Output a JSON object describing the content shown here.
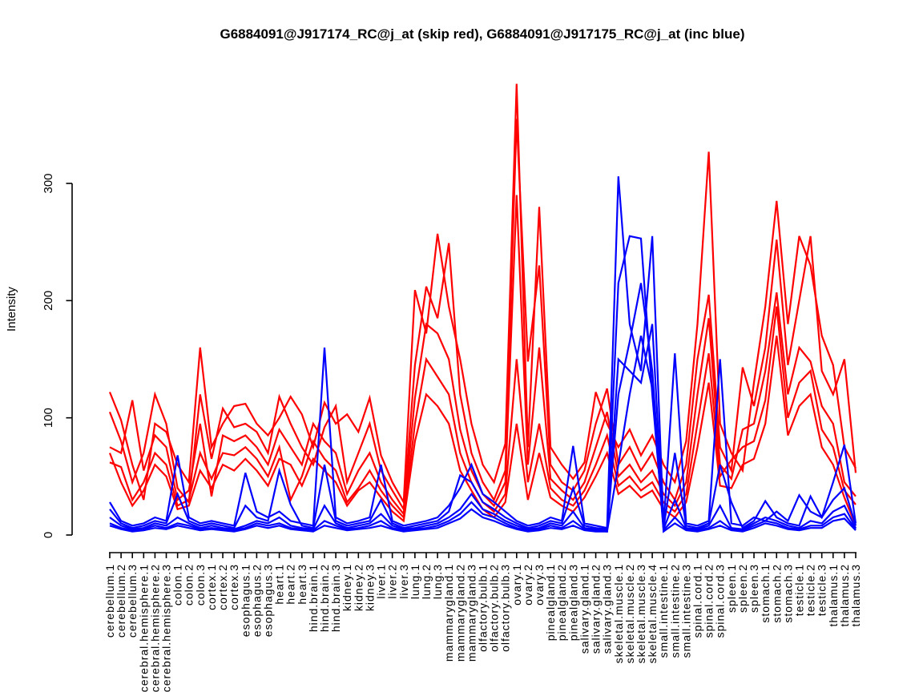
{
  "title": "G6884091@J917174_RC@j_at (skip red), G6884091@J917175_RC@j_at (inc blue)",
  "chart_data": {
    "type": "line",
    "title": "G6884091@J917174_RC@j_at (skip red), G6884091@J917175_RC@j_at (inc blue)",
    "xlabel": "",
    "ylabel": "Intensity",
    "ylim": [
      0,
      390
    ],
    "yticks": [
      0,
      100,
      200,
      300
    ],
    "grid": false,
    "legend_position": "none",
    "categories": [
      "cerebellum.1",
      "cerebellum.2",
      "cerebellum.3",
      "cerebral.hemisphere.1",
      "cerebral.hemisphere.2",
      "cerebral.hemisphere.3",
      "colon.1",
      "colon.2",
      "colon.3",
      "cortex.1",
      "cortex.2",
      "cortex.3",
      "esophagus.1",
      "esophagus.2",
      "esophagus.3",
      "heart.1",
      "heart.2",
      "heart.3",
      "hind.brain.1",
      "hind.brain.2",
      "hind.brain.3",
      "kidney.1",
      "kidney.2",
      "kidney.3",
      "liver.1",
      "liver.2",
      "liver.3",
      "lung.1",
      "lung.2",
      "lung.3",
      "mammarygland.1",
      "mammarygland.2",
      "mammarygland.3",
      "olfactory.bulb.1",
      "olfactory.bulb.2",
      "olfactory.bulb.3",
      "ovary.1",
      "ovary.2",
      "ovary.3",
      "pinealgland.1",
      "pinealgland.2",
      "pinealgland.3",
      "salivary.gland.1",
      "salivary.gland.2",
      "salivary.gland.3",
      "skeletal.muscle.1",
      "skeletal.muscle.2",
      "skeletal.muscle.3",
      "skeletal.muscle.4",
      "small.intestine.1",
      "small.intestine.2",
      "small.intestine.3",
      "spinal.cord.1",
      "spinal.cord.2",
      "spinal.cord.3",
      "spleen.1",
      "spleen.2",
      "spleen.3",
      "stomach.1",
      "stomach.2",
      "stomach.3",
      "testicle.1",
      "testicle.2",
      "testicle.3",
      "thalamus.1",
      "thalamus.2",
      "thalamus.3"
    ],
    "series": [
      {
        "name": "G6884091@J917174_RC@j_at",
        "role": "skip",
        "color": "#FF0000",
        "lines": [
          [
            122,
            98,
            60,
            30,
            95,
            88,
            60,
            45,
            160,
            75,
            95,
            110,
            112,
            95,
            85,
            100,
            118,
            103,
            75,
            113,
            95,
            103,
            88,
            117,
            68,
            45,
            28,
            209,
            172,
            257,
            195,
            150,
            95,
            60,
            45,
            78,
            385,
            75,
            280,
            75,
            60,
            48,
            62,
            122,
            95,
            75,
            90,
            68,
            85,
            60,
            45,
            80,
            180,
            327,
            95,
            70,
            55,
            130,
            195,
            285,
            180,
            255,
            230,
            170,
            145,
            75,
            57
          ],
          [
            105,
            80,
            45,
            70,
            120,
            95,
            40,
            28,
            120,
            65,
            108,
            92,
            95,
            88,
            70,
            118,
            95,
            75,
            60,
            92,
            110,
            45,
            70,
            95,
            55,
            38,
            22,
            145,
            212,
            185,
            249,
            120,
            70,
            45,
            30,
            55,
            355,
            148,
            230,
            60,
            45,
            38,
            55,
            95,
            125,
            60,
            75,
            55,
            70,
            45,
            30,
            60,
            150,
            205,
            75,
            55,
            143,
            110,
            160,
            252,
            145,
            200,
            255,
            140,
            120,
            150,
            53
          ],
          [
            75,
            70,
            115,
            55,
            85,
            75,
            30,
            38,
            95,
            33,
            85,
            80,
            85,
            75,
            60,
            90,
            75,
            60,
            95,
            80,
            70,
            35,
            55,
            70,
            45,
            30,
            18,
            117,
            180,
            172,
            150,
            90,
            55,
            35,
            25,
            45,
            290,
            60,
            160,
            48,
            38,
            30,
            45,
            75,
            105,
            50,
            60,
            45,
            55,
            35,
            25,
            45,
            120,
            185,
            60,
            48,
            90,
            95,
            140,
            207,
            120,
            160,
            148,
            110,
            95,
            45,
            33
          ],
          [
            62,
            58,
            30,
            45,
            70,
            60,
            25,
            30,
            70,
            48,
            70,
            68,
            75,
            65,
            50,
            75,
            30,
            50,
            80,
            65,
            55,
            28,
            40,
            55,
            38,
            25,
            15,
            95,
            150,
            135,
            120,
            70,
            45,
            28,
            20,
            35,
            150,
            45,
            95,
            40,
            30,
            25,
            38,
            60,
            85,
            42,
            50,
            38,
            45,
            28,
            20,
            35,
            95,
            155,
            50,
            64,
            75,
            80,
            115,
            195,
            100,
            130,
            140,
            90,
            75,
            38,
            26
          ],
          [
            70,
            45,
            25,
            38,
            60,
            50,
            22,
            25,
            55,
            40,
            60,
            55,
            65,
            55,
            42,
            65,
            60,
            42,
            65,
            55,
            45,
            25,
            38,
            45,
            32,
            20,
            12,
            80,
            120,
            110,
            95,
            55,
            38,
            22,
            15,
            28,
            95,
            30,
            70,
            32,
            25,
            20,
            32,
            50,
            70,
            35,
            42,
            32,
            38,
            22,
            15,
            28,
            75,
            130,
            42,
            40,
            60,
            65,
            95,
            170,
            85,
            110,
            120,
            75,
            60,
            32,
            8
          ]
        ]
      },
      {
        "name": "G6884091@J917175_RC@j_at",
        "role": "inc",
        "color": "#0000FF",
        "lines": [
          [
            28,
            12,
            8,
            10,
            15,
            12,
            68,
            15,
            10,
            12,
            10,
            8,
            53,
            20,
            15,
            20,
            12,
            10,
            8,
            160,
            15,
            10,
            12,
            15,
            60,
            12,
            8,
            10,
            12,
            15,
            25,
            40,
            60,
            35,
            28,
            20,
            12,
            8,
            10,
            15,
            12,
            76,
            10,
            8,
            6,
            306,
            180,
            140,
            255,
            8,
            155,
            10,
            8,
            12,
            150,
            10,
            8,
            15,
            12,
            20,
            12,
            34,
            20,
            15,
            45,
            77,
            10
          ],
          [
            22,
            10,
            6,
            8,
            12,
            10,
            35,
            12,
            8,
            10,
            8,
            6,
            25,
            15,
            12,
            55,
            26,
            8,
            6,
            60,
            12,
            8,
            10,
            12,
            30,
            10,
            6,
            8,
            10,
            12,
            20,
            51,
            45,
            28,
            22,
            15,
            10,
            6,
            8,
            12,
            10,
            40,
            8,
            6,
            5,
            215,
            255,
            253,
            120,
            6,
            70,
            8,
            6,
            10,
            60,
            28,
            6,
            12,
            29,
            15,
            10,
            8,
            33,
            15,
            30,
            40,
            8
          ],
          [
            15,
            8,
            5,
            6,
            10,
            8,
            15,
            10,
            6,
            8,
            6,
            5,
            8,
            12,
            10,
            15,
            8,
            6,
            5,
            25,
            10,
            6,
            8,
            10,
            18,
            8,
            5,
            6,
            8,
            10,
            15,
            22,
            35,
            22,
            18,
            12,
            8,
            5,
            6,
            10,
            8,
            20,
            6,
            5,
            4,
            120,
            165,
            215,
            140,
            5,
            30,
            6,
            5,
            8,
            25,
            6,
            5,
            10,
            15,
            12,
            8,
            6,
            12,
            10,
            20,
            25,
            6
          ],
          [
            10,
            6,
            4,
            5,
            8,
            6,
            10,
            8,
            5,
            6,
            5,
            4,
            6,
            10,
            8,
            10,
            6,
            5,
            4,
            12,
            8,
            5,
            6,
            8,
            12,
            6,
            4,
            5,
            6,
            8,
            12,
            18,
            28,
            18,
            15,
            10,
            6,
            4,
            5,
            8,
            6,
            12,
            5,
            4,
            3,
            150,
            140,
            130,
            180,
            4,
            15,
            5,
            4,
            6,
            12,
            5,
            4,
            8,
            12,
            10,
            6,
            5,
            8,
            8,
            15,
            18,
            5
          ],
          [
            8,
            5,
            3,
            4,
            6,
            5,
            8,
            6,
            4,
            5,
            4,
            3,
            5,
            8,
            6,
            8,
            5,
            4,
            3,
            8,
            6,
            4,
            5,
            6,
            8,
            5,
            3,
            4,
            5,
            6,
            10,
            14,
            22,
            15,
            12,
            8,
            5,
            3,
            4,
            6,
            5,
            8,
            4,
            3,
            3,
            60,
            120,
            170,
            125,
            3,
            10,
            4,
            3,
            5,
            8,
            4,
            3,
            6,
            10,
            8,
            5,
            4,
            6,
            6,
            12,
            14,
            4
          ]
        ]
      }
    ]
  }
}
